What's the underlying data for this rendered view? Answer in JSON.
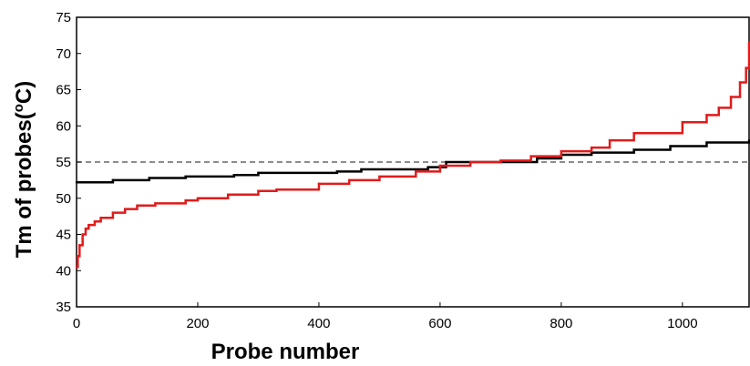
{
  "chart_data": {
    "type": "line",
    "xlabel": "Probe number",
    "ylabel": "Tm of probes(",
    "ylabel_sup": "o",
    "ylabel_tail": "C)",
    "xlim": [
      0,
      1110
    ],
    "ylim": [
      35,
      75
    ],
    "x_ticks": [
      0,
      200,
      400,
      600,
      800,
      1000
    ],
    "y_ticks": [
      35,
      40,
      45,
      50,
      55,
      60,
      65,
      70,
      75
    ],
    "reference_line": {
      "y": 55,
      "style": "dashed",
      "color": "#666666"
    },
    "grid": false,
    "legend": "none",
    "series": [
      {
        "color": "#000000",
        "x": [
          0,
          60,
          120,
          180,
          260,
          300,
          430,
          470,
          580,
          610,
          700,
          760,
          800,
          850,
          920,
          980,
          1040,
          1110
        ],
        "y": [
          52.2,
          52.5,
          52.8,
          53.0,
          53.2,
          53.5,
          53.7,
          54.0,
          54.3,
          55.0,
          55.0,
          55.5,
          56.0,
          56.3,
          56.7,
          57.2,
          57.7,
          58.0
        ]
      },
      {
        "color": "#e11b1b",
        "x": [
          0,
          2,
          5,
          10,
          15,
          20,
          30,
          40,
          60,
          80,
          100,
          130,
          180,
          200,
          250,
          300,
          330,
          400,
          450,
          500,
          560,
          600,
          650,
          700,
          750,
          800,
          850,
          880,
          920,
          1000,
          1040,
          1060,
          1080,
          1095,
          1105,
          1110
        ],
        "y": [
          40.5,
          42.0,
          43.5,
          45.0,
          45.8,
          46.3,
          46.8,
          47.3,
          48.0,
          48.5,
          49.0,
          49.3,
          49.7,
          50.0,
          50.5,
          51.0,
          51.2,
          52.0,
          52.5,
          53.0,
          53.7,
          54.5,
          55.0,
          55.2,
          55.8,
          56.5,
          57.0,
          58.0,
          59.0,
          60.5,
          61.5,
          62.5,
          64.0,
          66.0,
          68.0,
          71.5
        ]
      }
    ]
  }
}
